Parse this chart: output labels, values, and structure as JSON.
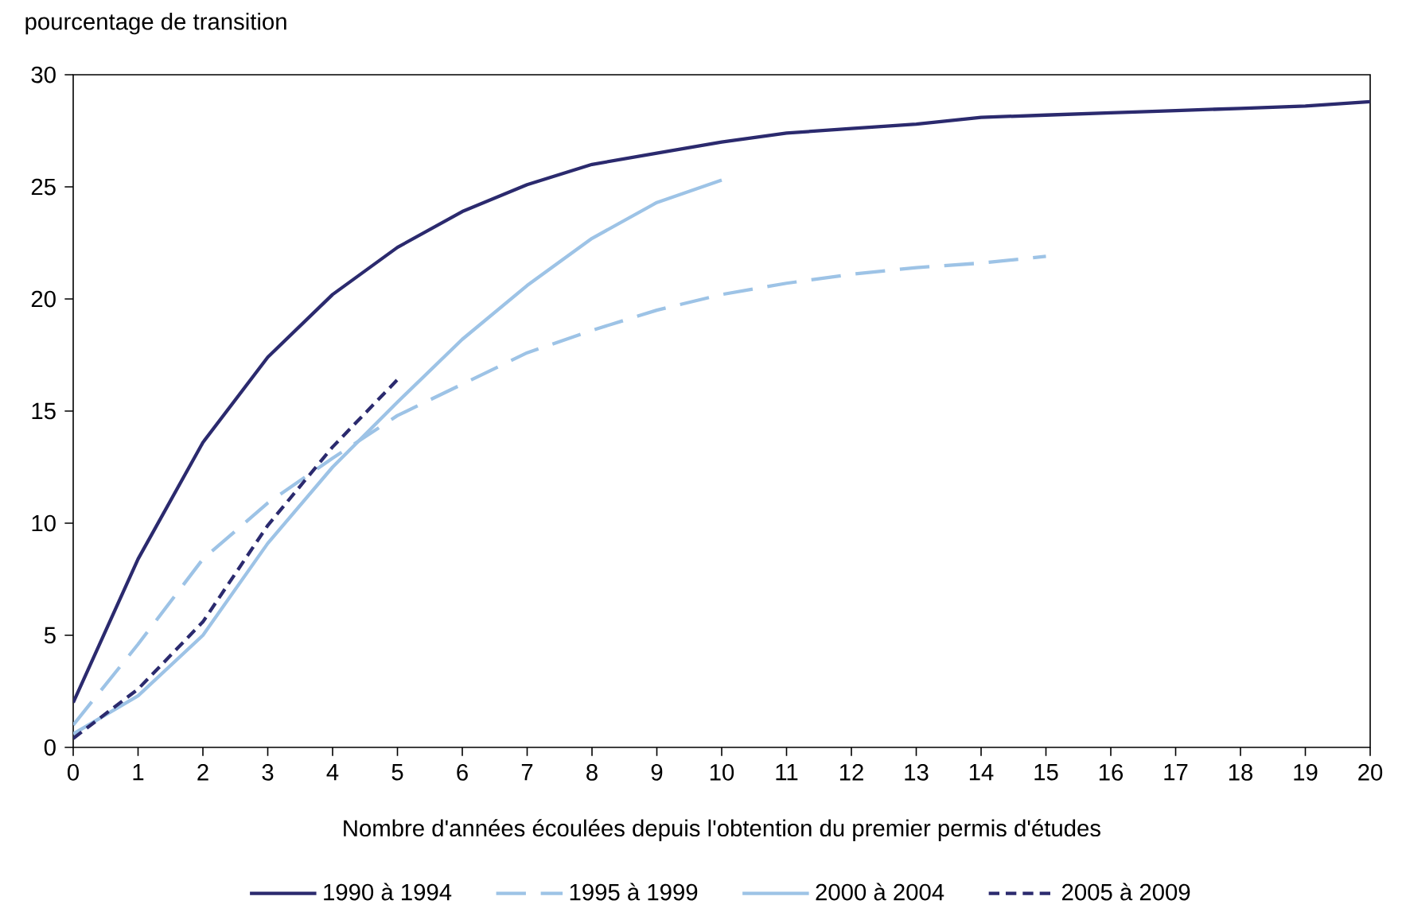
{
  "chart_data": {
    "type": "line",
    "ylabel": "pourcentage de transition",
    "xlabel": "Nombre d'années écoulées depuis l'obtention du premier permis d'études",
    "xlim": [
      0,
      20
    ],
    "xticks": [
      0,
      1,
      2,
      3,
      4,
      5,
      6,
      7,
      8,
      9,
      10,
      11,
      12,
      13,
      14,
      15,
      16,
      17,
      18,
      19,
      20
    ],
    "ylim": [
      0,
      30
    ],
    "yticks": [
      0,
      5,
      10,
      15,
      20,
      25,
      30
    ],
    "grid": false,
    "legend": "bottom",
    "marker": "none",
    "series": [
      {
        "name": "1990 à 1994",
        "color": "#2b2a6e",
        "line_style": "solid",
        "x": [
          0,
          1,
          2,
          3,
          4,
          5,
          6,
          7,
          8,
          9,
          10,
          11,
          12,
          13,
          14,
          15,
          16,
          17,
          18,
          19,
          20
        ],
        "values": [
          2.0,
          8.4,
          13.6,
          17.4,
          20.2,
          22.3,
          23.9,
          25.1,
          26.0,
          26.5,
          27.0,
          27.4,
          27.6,
          27.8,
          28.1,
          28.2,
          28.3,
          28.4,
          28.5,
          28.6,
          28.8
        ]
      },
      {
        "name": "1995 à 1999",
        "color": "#9dc3e6",
        "line_style": "dashed",
        "x": [
          0,
          1,
          2,
          3,
          4,
          5,
          6,
          7,
          8,
          9,
          10,
          11,
          12,
          13,
          14,
          15
        ],
        "values": [
          1.0,
          4.6,
          8.4,
          10.9,
          12.9,
          14.8,
          16.2,
          17.6,
          18.6,
          19.5,
          20.2,
          20.7,
          21.1,
          21.4,
          21.6,
          21.9
        ]
      },
      {
        "name": "2000 à 2004",
        "color": "#9dc3e6",
        "line_style": "solid",
        "x": [
          0,
          1,
          2,
          3,
          4,
          5,
          6,
          7,
          8,
          9,
          10
        ],
        "values": [
          0.6,
          2.3,
          5.0,
          9.1,
          12.5,
          15.4,
          18.2,
          20.6,
          22.7,
          24.3,
          25.3
        ]
      },
      {
        "name": "2005 à 2009",
        "color": "#2b2a6e",
        "line_style": "dotted",
        "x": [
          0,
          1,
          2,
          3,
          4,
          5
        ],
        "values": [
          0.4,
          2.6,
          5.6,
          9.9,
          13.4,
          16.4
        ]
      }
    ]
  }
}
